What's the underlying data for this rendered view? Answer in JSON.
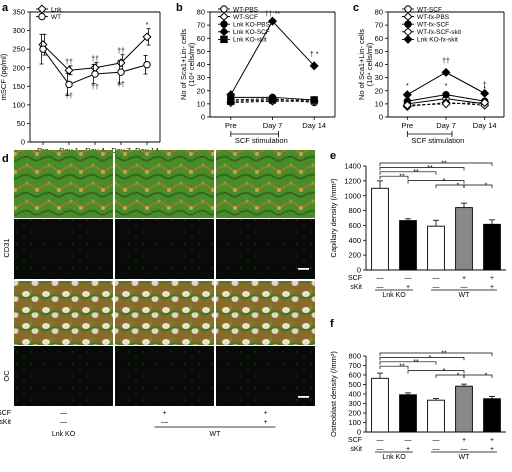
{
  "chart_data": [
    {
      "id": "a",
      "panel": "a",
      "type": "line",
      "ylabel": "mSCF (pg/ml)",
      "ylim": [
        0,
        350
      ],
      "yticks": [
        0,
        50,
        100,
        150,
        200,
        250,
        300,
        350
      ],
      "categories": [
        "Pre",
        "Day 1",
        "Day 4",
        "Day 7",
        "Day 14"
      ],
      "series": [
        {
          "name": "Lnk",
          "marker": "diamond-open",
          "values": [
            262,
            193,
            200,
            213,
            283
          ],
          "err": [
            28,
            12,
            14,
            22,
            22
          ]
        },
        {
          "name": "WT",
          "marker": "circle-open",
          "values": [
            250,
            155,
            183,
            188,
            208
          ],
          "err": [
            40,
            30,
            26,
            32,
            25
          ]
        }
      ],
      "annotations": [
        {
          "text": "††",
          "cat": 1,
          "y": 210
        },
        {
          "text": "††",
          "cat": 2,
          "y": 218
        },
        {
          "text": "††",
          "cat": 3,
          "y": 240
        },
        {
          "text": "††",
          "cat": 1,
          "y": 118
        },
        {
          "text": "††",
          "cat": 2,
          "y": 143
        },
        {
          "text": "††",
          "cat": 3,
          "y": 150
        },
        {
          "text": "*",
          "cat": 4,
          "y": 310
        }
      ]
    },
    {
      "id": "b",
      "panel": "b",
      "type": "line",
      "ylabel": "No of Sca1+Lin- cells",
      "ylabel2": "(10⁴ cells/ml)",
      "ylim": [
        0,
        80
      ],
      "yticks": [
        0,
        10,
        20,
        30,
        40,
        50,
        60,
        70,
        80
      ],
      "categories": [
        "Pre",
        "Day 7",
        "Day 14"
      ],
      "xnote": "SCF stimulation",
      "series": [
        {
          "name": "WT-PBS",
          "marker": "circle-open",
          "values": [
            13,
            14,
            11
          ],
          "dash": "3,2"
        },
        {
          "name": "WT-SCF",
          "marker": "diamond-open",
          "values": [
            11,
            12,
            12
          ],
          "dash": "3,2"
        },
        {
          "name": "Lnk KO-PBS",
          "marker": "circle-filled",
          "values": [
            15,
            15,
            13
          ],
          "dash": ""
        },
        {
          "name": "Lnk KO-SCF",
          "marker": "diamond-filled",
          "values": [
            17,
            73,
            39
          ],
          "dash": ""
        },
        {
          "name": "Lnk KO-skit",
          "marker": "square-filled",
          "values": [
            12,
            13,
            13
          ],
          "dash": "3,2"
        }
      ],
      "annotations": [
        {
          "text": "†† **",
          "cat": 1,
          "y": 77
        },
        {
          "text": "† *",
          "cat": 2,
          "y": 46
        }
      ]
    },
    {
      "id": "c",
      "panel": "c",
      "type": "line",
      "ylabel": "No of Sca1+Lin- cells",
      "ylabel2": "(10⁴ cells/ml)",
      "ylim": [
        0,
        80
      ],
      "yticks": [
        0,
        10,
        20,
        30,
        40,
        50,
        60,
        70,
        80
      ],
      "categories": [
        "Pre",
        "Day 7",
        "Day 14"
      ],
      "xnote": "SCF stimulation",
      "series": [
        {
          "name": "WT-SCF",
          "marker": "circle-open",
          "values": [
            10,
            14,
            10
          ],
          "dash": ""
        },
        {
          "name": "WT-fx-PBS",
          "marker": "diamond-open",
          "values": [
            8,
            11,
            9
          ],
          "dash": "3,2"
        },
        {
          "name": "WT-fx-SCF",
          "marker": "circle-filled",
          "values": [
            12,
            17,
            12
          ],
          "dash": ""
        },
        {
          "name": "WT-fx-SCF-skit",
          "marker": "diamond-open",
          "values": [
            9,
            10,
            11
          ],
          "dash": "3,2"
        },
        {
          "name": "Lnk KO-fx-skit",
          "marker": "diamond-filled",
          "values": [
            17,
            34,
            18
          ],
          "dash": ""
        }
      ],
      "annotations": [
        {
          "text": "††",
          "cat": 1,
          "y": 41
        },
        {
          "text": "**",
          "cat": 1,
          "y": 30
        },
        {
          "text": "*",
          "cat": 0,
          "y": 22
        },
        {
          "text": "*",
          "cat": 1,
          "y": 22
        },
        {
          "text": "†",
          "cat": 2,
          "y": 23
        },
        {
          "text": "*",
          "cat": 2,
          "y": 20
        }
      ]
    },
    {
      "id": "e",
      "panel": "e",
      "type": "bar",
      "ylabel": "Capillary density (/mm²)",
      "ylim": [
        0,
        1400
      ],
      "yticks": [
        0,
        200,
        400,
        600,
        800,
        1000,
        1200,
        1400
      ],
      "values": [
        1100,
        665,
        590,
        840,
        615
      ],
      "err": [
        100,
        25,
        80,
        60,
        60
      ],
      "colors": [
        "#ffffff",
        "#000000",
        "#ffffff",
        "#888888",
        "#000000"
      ],
      "rows": [
        {
          "label": "SCF",
          "cells": [
            "—",
            "—",
            "—",
            "+",
            "+"
          ]
        },
        {
          "label": "sKit",
          "cells": [
            "—",
            "+",
            "—",
            "—",
            "+"
          ]
        }
      ],
      "groups": [
        {
          "label": "Lnk KO",
          "from": 0,
          "to": 1
        },
        {
          "label": "WT",
          "from": 2,
          "to": 4
        }
      ],
      "brackets": [
        {
          "from": 0,
          "to": 4,
          "level": 0,
          "text": "**"
        },
        {
          "from": 0,
          "to": 3,
          "level": 1,
          "text": "**"
        },
        {
          "from": 0,
          "to": 2,
          "level": 2,
          "text": "**"
        },
        {
          "from": 0,
          "to": 1,
          "level": 3,
          "text": "**"
        },
        {
          "from": 1,
          "to": 3,
          "level": 4,
          "text": "*"
        },
        {
          "from": 2,
          "to": 3,
          "level": 5,
          "text": "*"
        },
        {
          "from": 3,
          "to": 4,
          "level": 5,
          "text": "*"
        }
      ]
    },
    {
      "id": "f",
      "panel": "f",
      "type": "bar",
      "ylabel": "Osteoblast density (/mm²)",
      "ylim": [
        0,
        800
      ],
      "yticks": [
        0,
        100,
        200,
        300,
        400,
        500,
        600,
        700,
        800
      ],
      "values": [
        565,
        392,
        335,
        482,
        350
      ],
      "err": [
        55,
        20,
        18,
        22,
        25
      ],
      "colors": [
        "#ffffff",
        "#000000",
        "#ffffff",
        "#888888",
        "#000000"
      ],
      "rows": [
        {
          "label": "SCF",
          "cells": [
            "—",
            "—",
            "—",
            "+",
            "+"
          ]
        },
        {
          "label": "sKit",
          "cells": [
            "—",
            "+",
            "—",
            "—",
            "+"
          ]
        }
      ],
      "groups": [
        {
          "label": "Lnk KO",
          "from": 0,
          "to": 1
        },
        {
          "label": "WT",
          "from": 2,
          "to": 4
        }
      ],
      "brackets": [
        {
          "from": 0,
          "to": 4,
          "level": 0,
          "text": "**"
        },
        {
          "from": 0,
          "to": 3,
          "level": 1,
          "text": "*"
        },
        {
          "from": 0,
          "to": 2,
          "level": 2,
          "text": "**"
        },
        {
          "from": 0,
          "to": 1,
          "level": 3,
          "text": "**"
        },
        {
          "from": 1,
          "to": 3,
          "level": 4,
          "text": "*"
        },
        {
          "from": 2,
          "to": 3,
          "level": 5,
          "text": "*"
        },
        {
          "from": 3,
          "to": 4,
          "level": 5,
          "text": "*"
        }
      ]
    }
  ],
  "panel_d": {
    "letter": "d",
    "row_labels": [
      "CD31",
      "OC"
    ],
    "condition_rows": [
      {
        "label": "SCF",
        "cells": [
          "—",
          "+",
          "+"
        ]
      },
      {
        "label": "sKit",
        "cells": [
          "—",
          "—",
          "+"
        ]
      }
    ],
    "groups": [
      {
        "label": "Lnk KO"
      },
      {
        "label": "WT"
      }
    ],
    "colors": {
      "green": "#3e8a22",
      "tan": "#b08a3a",
      "dark": "#0a0f08"
    }
  },
  "colors": {
    "ink": "#000000",
    "grey_bar": "#888888"
  }
}
